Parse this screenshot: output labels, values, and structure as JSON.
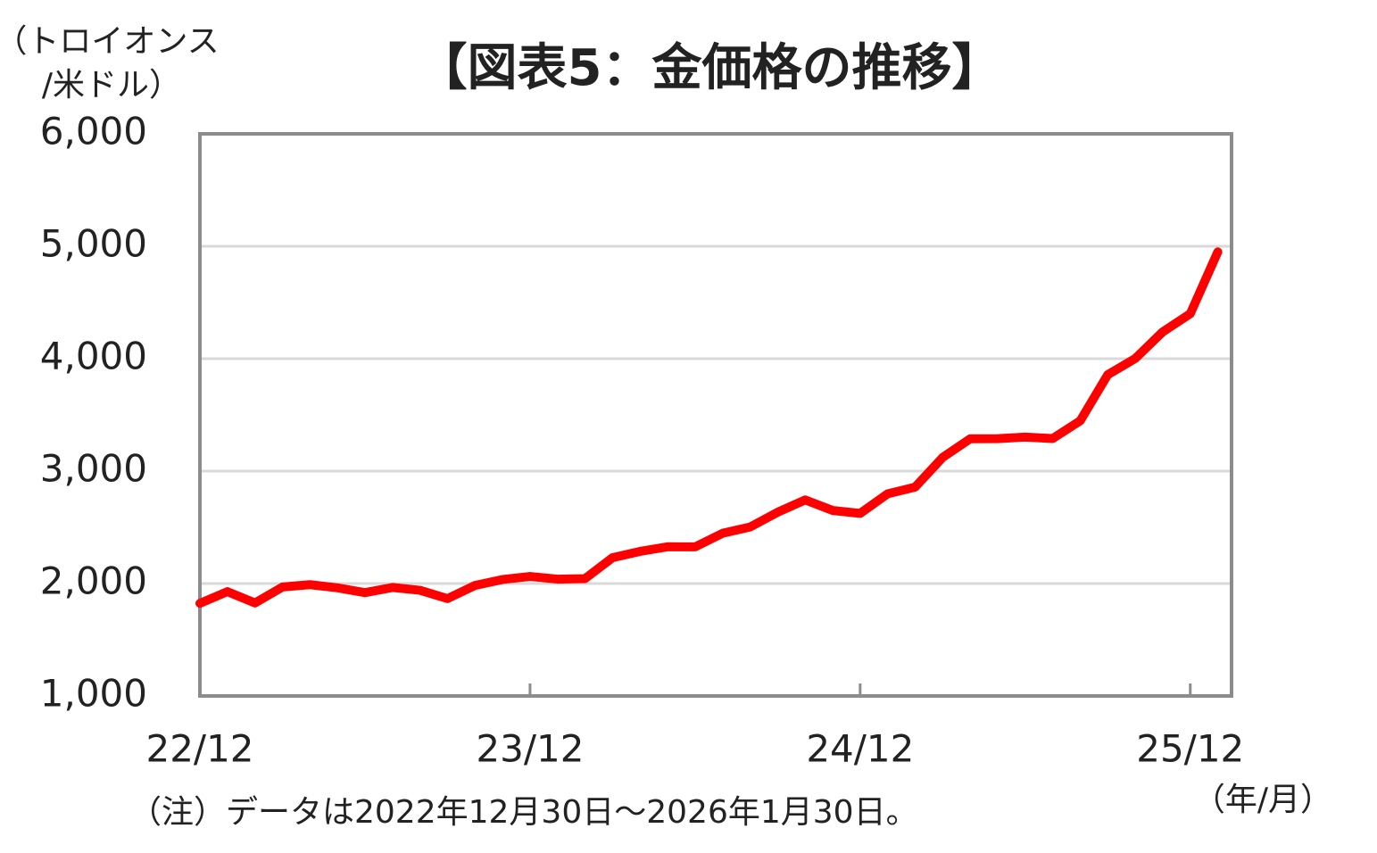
{
  "chart_data": {
    "type": "line",
    "title": "【図表5：金価格の推移】",
    "y_axis_label": [
      "（トロイオンス",
      "/米ドル）"
    ],
    "x_axis_label": "（年/月）",
    "note": "（注）データは2022年12月30日～2026年1月30日。",
    "categories": [
      "22/12",
      null,
      null,
      null,
      null,
      null,
      null,
      null,
      null,
      null,
      null,
      null,
      "23/12",
      null,
      null,
      null,
      null,
      null,
      null,
      null,
      null,
      null,
      null,
      null,
      "24/12",
      null,
      null,
      null,
      null,
      null,
      null,
      null,
      null,
      null,
      null,
      null,
      "25/12",
      null
    ],
    "series": [
      {
        "name": "金価格",
        "color": "#ff0000",
        "values": [
          1824,
          1928,
          1827,
          1969,
          1990,
          1962,
          1919,
          1965,
          1940,
          1866,
          1983,
          2036,
          2063,
          2039,
          2044,
          2230,
          2286,
          2327,
          2326,
          2447,
          2503,
          2634,
          2744,
          2650,
          2624,
          2798,
          2858,
          3122,
          3288,
          3289,
          3303,
          3290,
          3448,
          3858,
          4002,
          4239,
          4400,
          4950
        ]
      }
    ],
    "ylim": [
      1000,
      6000
    ],
    "yticks": [
      {
        "value": 1000,
        "label": "1,000"
      },
      {
        "value": 2000,
        "label": "2,000"
      },
      {
        "value": 3000,
        "label": "3,000"
      },
      {
        "value": 4000,
        "label": "4,000"
      },
      {
        "value": 5000,
        "label": "5,000"
      },
      {
        "value": 6000,
        "label": "6,000"
      }
    ],
    "grid": true
  }
}
